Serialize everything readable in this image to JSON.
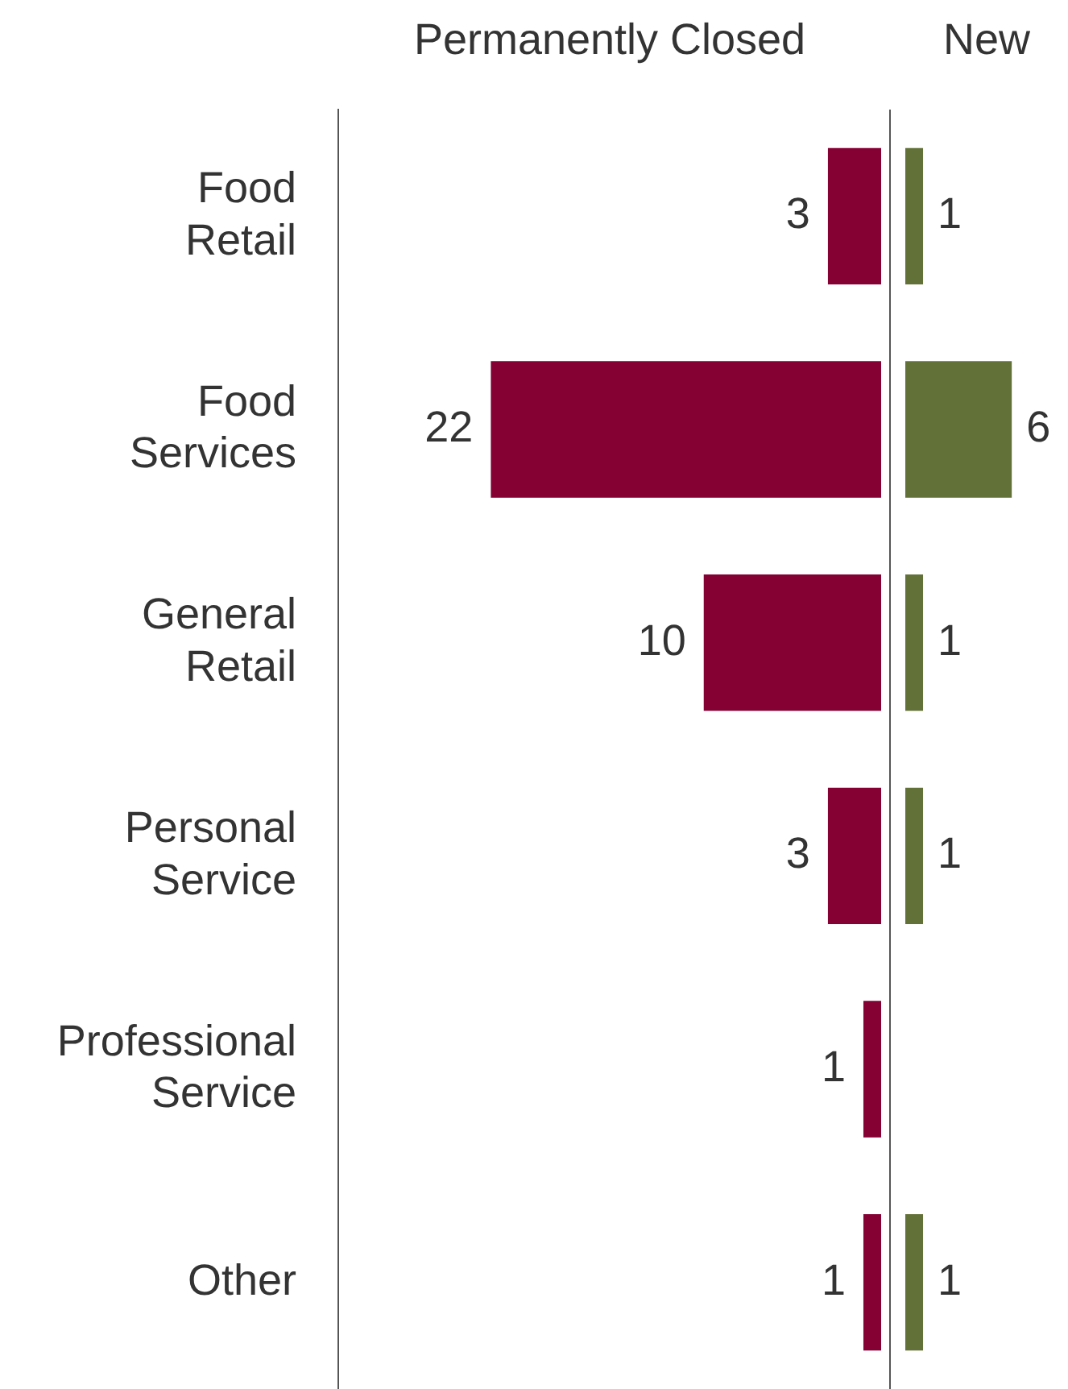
{
  "chart_data": [
    {
      "type": "bar",
      "orientation": "horizontal",
      "title": "Permanently Closed",
      "categories": [
        "Food Retail",
        "Food Services",
        "General Retail",
        "Personal Service",
        "Professional Service",
        "Other"
      ],
      "series": [
        {
          "color": "#850033",
          "values": [
            3,
            22,
            10,
            3,
            1,
            1
          ]
        }
      ],
      "xlim": [
        30.6,
        0
      ],
      "tick_labels": "y",
      "legend": false,
      "data_labels": true
    },
    {
      "type": "bar",
      "orientation": "horizontal",
      "title": "New",
      "categories": [
        null,
        null,
        null,
        null,
        null,
        null
      ],
      "series": [
        {
          "color": "#627138",
          "values": [
            1,
            6,
            1,
            1,
            null,
            1
          ]
        }
      ],
      "tick_labels": false,
      "legend": false,
      "data_labels": true
    }
  ]
}
